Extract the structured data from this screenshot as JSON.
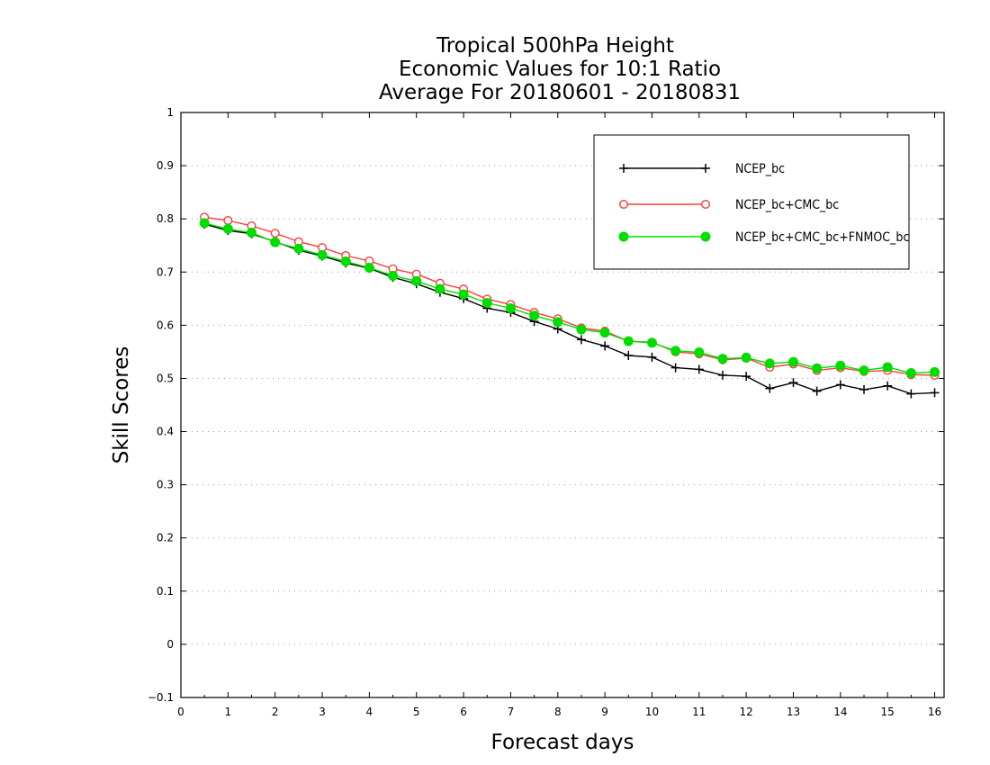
{
  "chart_data": {
    "type": "line",
    "title_lines": [
      "Tropical 500hPa Height",
      "Economic Values for 10:1 Ratio",
      "Average For 20180601 - 20180831"
    ],
    "xlabel": "Forecast days",
    "ylabel": "Skill Scores",
    "xlim": [
      0,
      16.2
    ],
    "ylim": [
      -0.1,
      1
    ],
    "x_ticks": [
      "0",
      "1",
      "2",
      "3",
      "4",
      "5",
      "6",
      "7",
      "8",
      "9",
      "10",
      "11",
      "12",
      "13",
      "14",
      "15",
      "16"
    ],
    "y_ticks": [
      "−0.1",
      "0",
      "0.1",
      "0.2",
      "0.3",
      "0.4",
      "0.5",
      "0.6",
      "0.7",
      "0.8",
      "0.9",
      "1"
    ],
    "grid": true,
    "legend_position": "top-right",
    "x": [
      0.5,
      1.0,
      1.5,
      2.0,
      2.5,
      3.0,
      3.5,
      4.0,
      4.5,
      5.0,
      5.5,
      6.0,
      6.5,
      7.0,
      7.5,
      8.0,
      8.5,
      9.0,
      9.5,
      10.0,
      10.5,
      11.0,
      11.5,
      12.0,
      12.5,
      13.0,
      13.5,
      14.0,
      14.5,
      15.0,
      15.5,
      16.0
    ],
    "series": [
      {
        "name": "NCEP_bc",
        "color": "#000000",
        "marker": "plus",
        "values": [
          0.79,
          0.778,
          0.772,
          0.757,
          0.741,
          0.73,
          0.717,
          0.707,
          0.69,
          0.678,
          0.662,
          0.65,
          0.632,
          0.624,
          0.607,
          0.593,
          0.573,
          0.561,
          0.543,
          0.54,
          0.52,
          0.517,
          0.506,
          0.504,
          0.481,
          0.492,
          0.476,
          0.488,
          0.479,
          0.486,
          0.471,
          0.473
        ]
      },
      {
        "name": "NCEP_bc+CMC_bc",
        "color": "#ff3b3b",
        "marker": "open-circle",
        "values": [
          0.803,
          0.797,
          0.787,
          0.773,
          0.757,
          0.746,
          0.731,
          0.721,
          0.706,
          0.696,
          0.679,
          0.668,
          0.649,
          0.639,
          0.624,
          0.612,
          0.595,
          0.589,
          0.57,
          0.568,
          0.55,
          0.546,
          0.535,
          0.538,
          0.521,
          0.527,
          0.515,
          0.52,
          0.513,
          0.515,
          0.507,
          0.506
        ]
      },
      {
        "name": "NCEP_bc+CMC_bc+FNMOC_bc",
        "color": "#00dd00",
        "marker": "filled-circle",
        "values": [
          0.792,
          0.781,
          0.774,
          0.756,
          0.744,
          0.732,
          0.72,
          0.708,
          0.693,
          0.683,
          0.668,
          0.658,
          0.642,
          0.632,
          0.618,
          0.606,
          0.592,
          0.586,
          0.57,
          0.567,
          0.552,
          0.549,
          0.537,
          0.539,
          0.528,
          0.531,
          0.519,
          0.524,
          0.515,
          0.521,
          0.51,
          0.512
        ]
      }
    ]
  }
}
